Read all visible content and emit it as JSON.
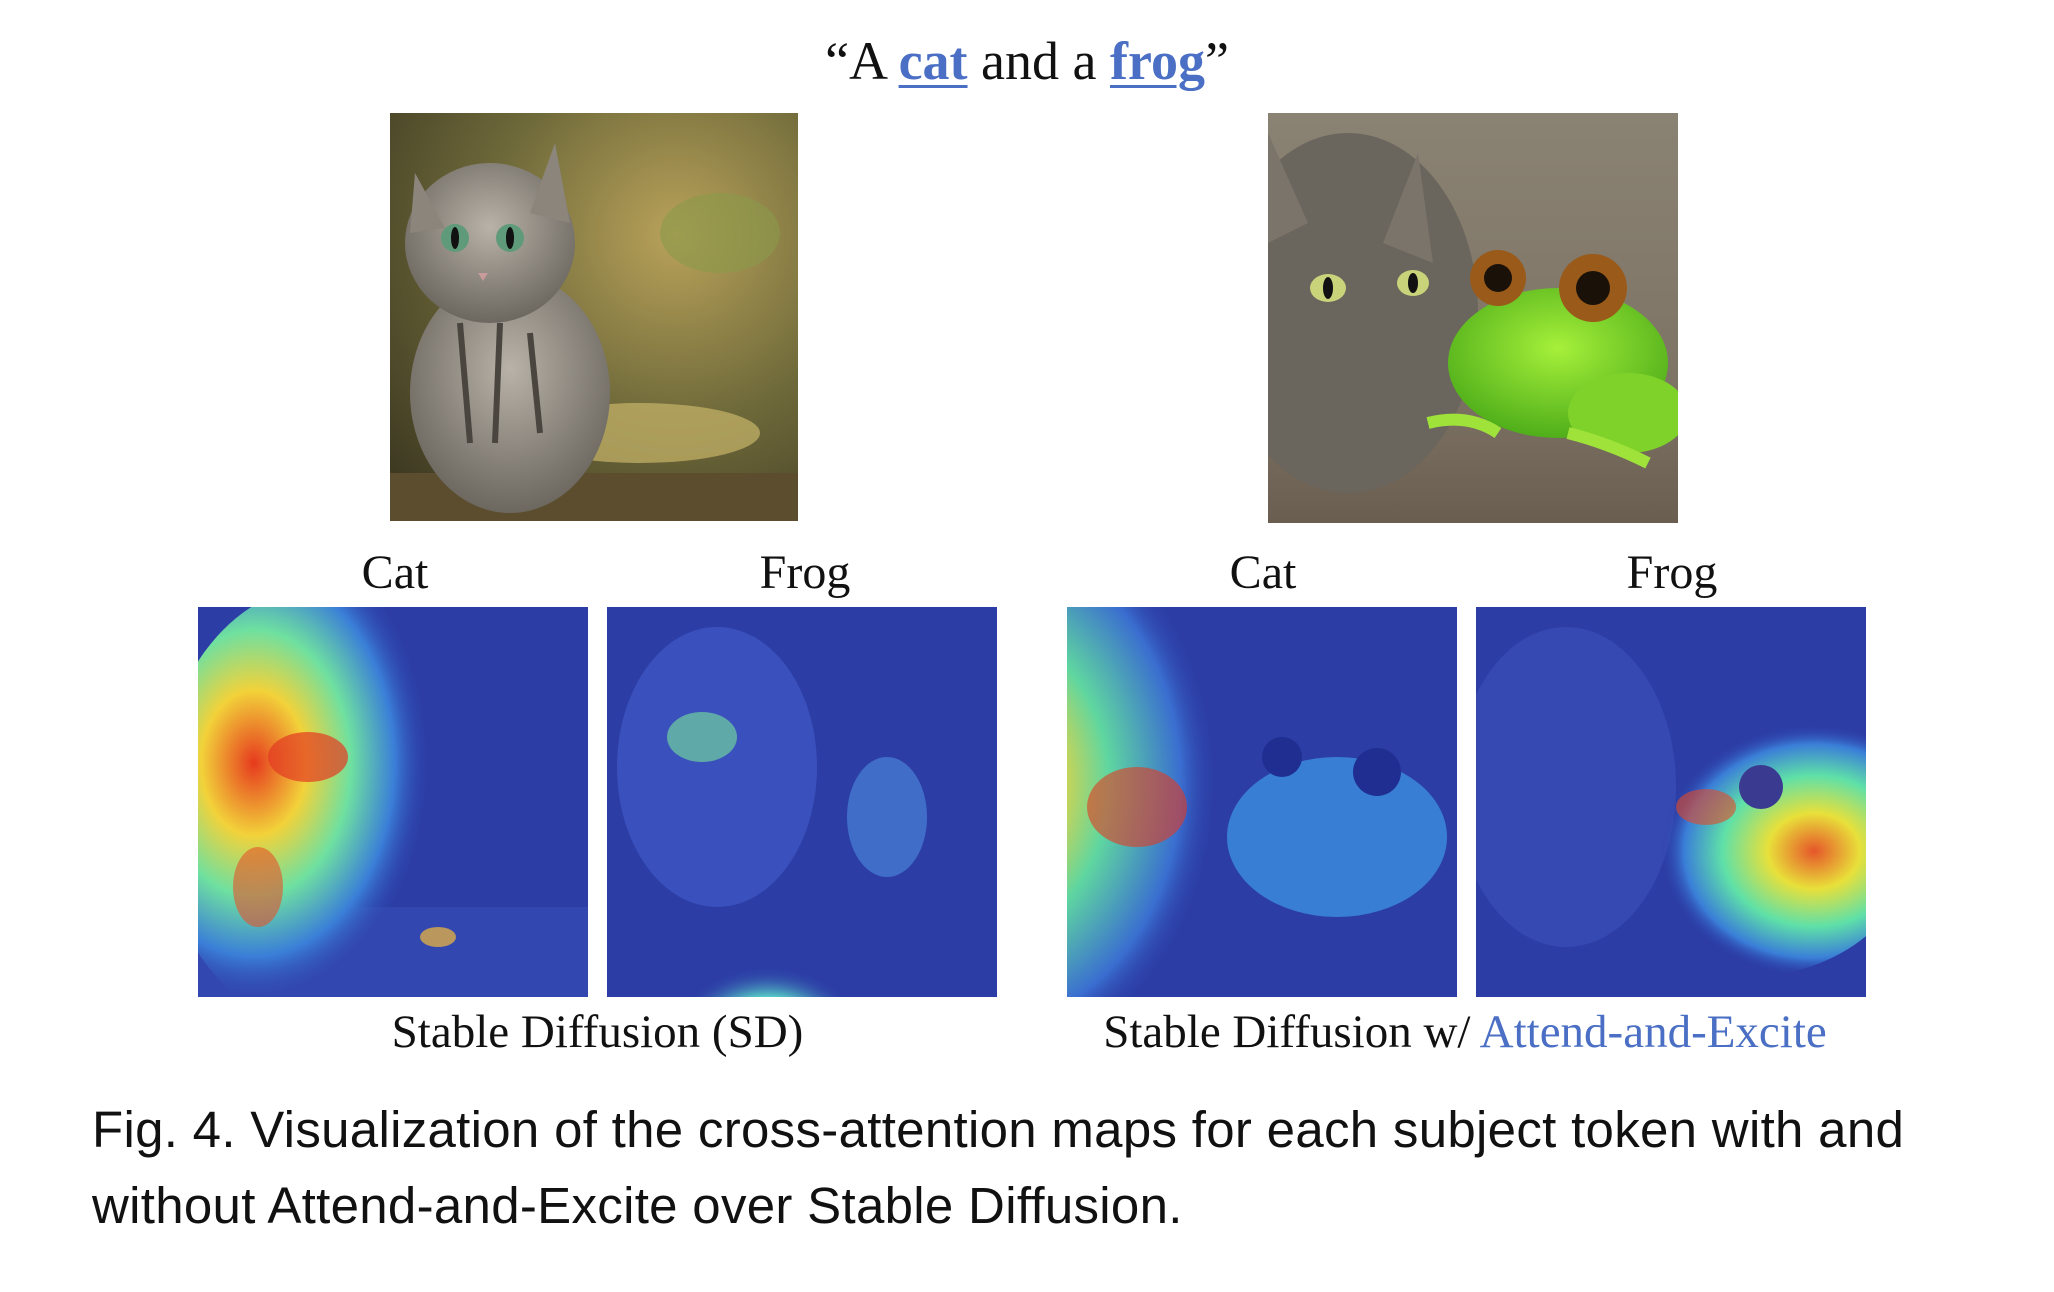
{
  "prompt": {
    "open_quote": "“A ",
    "token_cat": "cat",
    "middle": " and a ",
    "token_frog": "frog",
    "close_quote": "”"
  },
  "labels": {
    "sd_cat": "Cat",
    "sd_frog": "Frog",
    "ae_cat": "Cat",
    "ae_frog": "Frog"
  },
  "groups": {
    "sd": "Stable Diffusion (SD)",
    "ae_prefix": "Stable Diffusion w/ ",
    "ae_method": "Attend-and-Excite"
  },
  "caption": "Fig. 4.  Visualization of the cross-attention maps for each subject token with and without Attend-and-Excite over Stable Diffusion.",
  "colors": {
    "accent": "#4a6fc4"
  }
}
